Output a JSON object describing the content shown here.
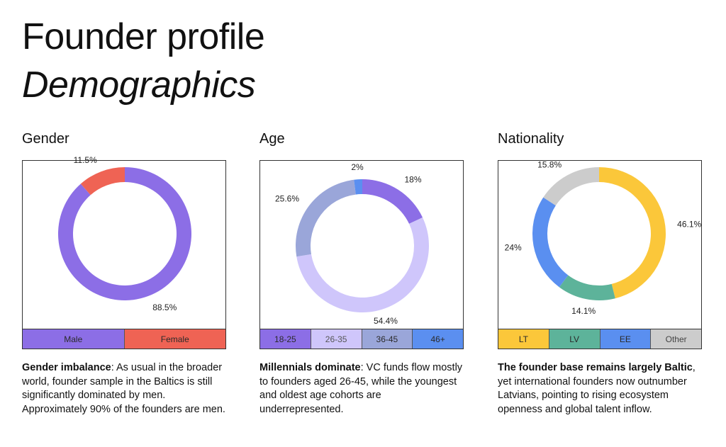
{
  "page": {
    "title": "Founder profile",
    "subtitle": "Demographics"
  },
  "panels": [
    {
      "title": "Gender",
      "note_bold": "Gender imbalance",
      "note_text": ": As usual in the broader world, founder sample in the Baltics is still significantly dominated by men. Approximately 90% of the founders are men."
    },
    {
      "title": "Age",
      "note_bold": "Millennials dominate",
      "note_text": ": VC funds flow mostly to founders aged 26-45, while the youngest and oldest age cohorts are underrepresented."
    },
    {
      "title": "Nationality",
      "note_bold": "The founder base remains largely Baltic",
      "note_text": ", yet international founders now outnumber Latvians, pointing to rising ecosystem openness and global talent inflow."
    }
  ],
  "chart_data": [
    {
      "type": "pie",
      "donut": true,
      "title": "Gender",
      "legend_position": "bottom",
      "slices": [
        {
          "label": "Male",
          "value": 88.5,
          "display": "88.5%",
          "color": "#8c6ee6",
          "legend_bg": "#8c6ee6",
          "legend_fg": "#2a2a2a"
        },
        {
          "label": "Female",
          "value": 11.5,
          "display": "11.5%",
          "color": "#ef6354",
          "legend_bg": "#ef6354",
          "legend_fg": "#2a2a2a"
        }
      ]
    },
    {
      "type": "pie",
      "donut": true,
      "title": "Age",
      "legend_position": "bottom",
      "slices": [
        {
          "label": "18-25",
          "value": 18,
          "display": "18%",
          "color": "#8c6ee6",
          "legend_bg": "#8c6ee6",
          "legend_fg": "#2a2a2a"
        },
        {
          "label": "26-35",
          "value": 54.4,
          "display": "54.4%",
          "color": "#cfc6fb",
          "legend_bg": "#cfc6fb",
          "legend_fg": "#555555"
        },
        {
          "label": "36-45",
          "value": 25.6,
          "display": "25.6%",
          "color": "#9aa6d9",
          "legend_bg": "#9aa6d9",
          "legend_fg": "#2a2a2a"
        },
        {
          "label": "46+",
          "value": 2,
          "display": "2%",
          "color": "#5b8ff0",
          "legend_bg": "#5b8ff0",
          "legend_fg": "#2a2a2a"
        }
      ]
    },
    {
      "type": "pie",
      "donut": true,
      "title": "Nationality",
      "legend_position": "bottom",
      "slices": [
        {
          "label": "LT",
          "value": 46.1,
          "display": "46.1%",
          "color": "#fbc73a",
          "legend_bg": "#fbc73a",
          "legend_fg": "#2a2a2a"
        },
        {
          "label": "LV",
          "value": 14.1,
          "display": "14.1%",
          "color": "#5db39a",
          "legend_bg": "#5db39a",
          "legend_fg": "#2a2a2a"
        },
        {
          "label": "EE",
          "value": 24,
          "display": "24%",
          "color": "#5a8ff0",
          "legend_bg": "#5a8ff0",
          "legend_fg": "#2a2a2a"
        },
        {
          "label": "Other",
          "value": 15.8,
          "display": "15.8%",
          "color": "#cccccc",
          "legend_bg": "#cccccc",
          "legend_fg": "#444444"
        }
      ]
    }
  ]
}
